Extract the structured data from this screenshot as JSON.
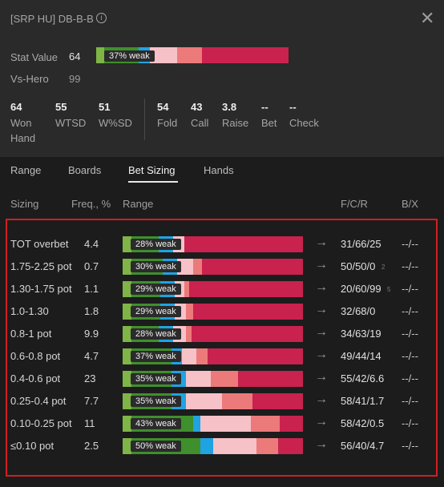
{
  "header": {
    "title": "[SRP HU] DB-B-B",
    "info_icon": "info-icon",
    "close_icon": "close-icon"
  },
  "stat_value": {
    "label": "Stat Value",
    "value": "64",
    "bar_label": "37% weak",
    "bar_segments": [
      {
        "color": "#7fb446",
        "frac": 0.04
      },
      {
        "color": "#3f8f2c",
        "frac": 0.18
      },
      {
        "color": "#1fa3e3",
        "frac": 0.06
      },
      {
        "color": "#f7c1c8",
        "frac": 0.14
      },
      {
        "color": "#ec7a7a",
        "frac": 0.13
      },
      {
        "color": "#c9224e",
        "frac": 0.45
      }
    ]
  },
  "vs_hero": {
    "label": "Vs-Hero",
    "value": "99"
  },
  "stats": [
    {
      "value": "64",
      "label": "Won Hand"
    },
    {
      "value": "55",
      "label": "WTSD"
    },
    {
      "value": "51",
      "label": "W%SD"
    },
    {
      "value": "54",
      "label": "Fold"
    },
    {
      "value": "43",
      "label": "Call"
    },
    {
      "value": "3.8",
      "label": "Raise"
    },
    {
      "value": "--",
      "label": "Bet"
    },
    {
      "value": "--",
      "label": "Check"
    }
  ],
  "tabs": [
    {
      "label": "Range",
      "active": false
    },
    {
      "label": "Boards",
      "active": false
    },
    {
      "label": "Bet Sizing",
      "active": true
    },
    {
      "label": "Hands",
      "active": false
    }
  ],
  "table_headers": {
    "sizing": "Sizing",
    "freq": "Freq., %",
    "range": "Range",
    "fcr": "F/C/R",
    "bx": "B/X"
  },
  "rows": [
    {
      "sizing": "TOT overbet",
      "freq": "4.4",
      "weak": "28% weak",
      "fcr": "31/66/25",
      "fcr_small": "",
      "bx": "--/--",
      "segments": [
        {
          "color": "#7fb446",
          "frac": 0.05
        },
        {
          "color": "#3f8f2c",
          "frac": 0.15
        },
        {
          "color": "#1fa3e3",
          "frac": 0.08
        },
        {
          "color": "#f7c1c8",
          "frac": 0.06
        },
        {
          "color": "#c9224e",
          "frac": 0.66
        }
      ]
    },
    {
      "sizing": "1.75-2.25 pot",
      "freq": "0.7",
      "weak": "30% weak",
      "fcr": "50/50/0",
      "fcr_small": "2",
      "bx": "--/--",
      "segments": [
        {
          "color": "#7fb446",
          "frac": 0.05
        },
        {
          "color": "#3f8f2c",
          "frac": 0.17
        },
        {
          "color": "#1fa3e3",
          "frac": 0.08
        },
        {
          "color": "#f7c1c8",
          "frac": 0.09
        },
        {
          "color": "#ec7a7a",
          "frac": 0.05
        },
        {
          "color": "#c9224e",
          "frac": 0.56
        }
      ]
    },
    {
      "sizing": "1.30-1.75 pot",
      "freq": "1.1",
      "weak": "29% weak",
      "fcr": "20/60/99",
      "fcr_small": "5",
      "bx": "--/--",
      "segments": [
        {
          "color": "#7fb446",
          "frac": 0.05
        },
        {
          "color": "#3f8f2c",
          "frac": 0.16
        },
        {
          "color": "#1fa3e3",
          "frac": 0.08
        },
        {
          "color": "#f7c1c8",
          "frac": 0.05
        },
        {
          "color": "#ec7a7a",
          "frac": 0.03
        },
        {
          "color": "#c9224e",
          "frac": 0.63
        }
      ]
    },
    {
      "sizing": "1.0-1.30",
      "freq": "1.8",
      "weak": "29% weak",
      "fcr": "32/68/0",
      "fcr_small": "",
      "bx": "--/--",
      "segments": [
        {
          "color": "#7fb446",
          "frac": 0.05
        },
        {
          "color": "#3f8f2c",
          "frac": 0.16
        },
        {
          "color": "#1fa3e3",
          "frac": 0.08
        },
        {
          "color": "#f7c1c8",
          "frac": 0.06
        },
        {
          "color": "#ec7a7a",
          "frac": 0.04
        },
        {
          "color": "#c9224e",
          "frac": 0.61
        }
      ]
    },
    {
      "sizing": "0.8-1 pot",
      "freq": "9.9",
      "weak": "28% weak",
      "fcr": "34/63/19",
      "fcr_small": "",
      "bx": "--/--",
      "segments": [
        {
          "color": "#7fb446",
          "frac": 0.05
        },
        {
          "color": "#3f8f2c",
          "frac": 0.15
        },
        {
          "color": "#1fa3e3",
          "frac": 0.08
        },
        {
          "color": "#f7c1c8",
          "frac": 0.07
        },
        {
          "color": "#ec7a7a",
          "frac": 0.03
        },
        {
          "color": "#c9224e",
          "frac": 0.62
        }
      ]
    },
    {
      "sizing": "0.6-0.8 pot",
      "freq": "4.7",
      "weak": "37% weak",
      "fcr": "49/44/14",
      "fcr_small": "",
      "bx": "--/--",
      "segments": [
        {
          "color": "#7fb446",
          "frac": 0.05
        },
        {
          "color": "#3f8f2c",
          "frac": 0.22
        },
        {
          "color": "#1fa3e3",
          "frac": 0.06
        },
        {
          "color": "#f7c1c8",
          "frac": 0.08
        },
        {
          "color": "#ec7a7a",
          "frac": 0.06
        },
        {
          "color": "#c9224e",
          "frac": 0.53
        }
      ]
    },
    {
      "sizing": "0.4-0.6 pot",
      "freq": "23",
      "weak": "35% weak",
      "fcr": "55/42/6.6",
      "fcr_small": "",
      "bx": "--/--",
      "segments": [
        {
          "color": "#7fb446",
          "frac": 0.05
        },
        {
          "color": "#3f8f2c",
          "frac": 0.22
        },
        {
          "color": "#1fa3e3",
          "frac": 0.08
        },
        {
          "color": "#f7c1c8",
          "frac": 0.14
        },
        {
          "color": "#ec7a7a",
          "frac": 0.15
        },
        {
          "color": "#c9224e",
          "frac": 0.36
        }
      ]
    },
    {
      "sizing": "0.25-0.4 pot",
      "freq": "7.7",
      "weak": "35% weak",
      "fcr": "58/41/1.7",
      "fcr_small": "",
      "bx": "--/--",
      "segments": [
        {
          "color": "#7fb446",
          "frac": 0.05
        },
        {
          "color": "#3f8f2c",
          "frac": 0.22
        },
        {
          "color": "#1fa3e3",
          "frac": 0.08
        },
        {
          "color": "#f7c1c8",
          "frac": 0.2
        },
        {
          "color": "#ec7a7a",
          "frac": 0.17
        },
        {
          "color": "#c9224e",
          "frac": 0.28
        }
      ]
    },
    {
      "sizing": "0.10-0.25 pot",
      "freq": "11",
      "weak": "43% weak",
      "fcr": "58/42/0.5",
      "fcr_small": "",
      "bx": "--/--",
      "segments": [
        {
          "color": "#7fb446",
          "frac": 0.05
        },
        {
          "color": "#3f8f2c",
          "frac": 0.34
        },
        {
          "color": "#1fa3e3",
          "frac": 0.04
        },
        {
          "color": "#f7c1c8",
          "frac": 0.28
        },
        {
          "color": "#ec7a7a",
          "frac": 0.16
        },
        {
          "color": "#c9224e",
          "frac": 0.13
        }
      ]
    },
    {
      "sizing": "≤0.10 pot",
      "freq": "2.5",
      "weak": "50% weak",
      "fcr": "56/40/4.7",
      "fcr_small": "",
      "bx": "--/--",
      "segments": [
        {
          "color": "#7fb446",
          "frac": 0.05
        },
        {
          "color": "#3f8f2c",
          "frac": 0.38
        },
        {
          "color": "#1fa3e3",
          "frac": 0.07
        },
        {
          "color": "#f7c1c8",
          "frac": 0.24
        },
        {
          "color": "#ec7a7a",
          "frac": 0.12
        },
        {
          "color": "#c9224e",
          "frac": 0.14
        }
      ]
    }
  ]
}
